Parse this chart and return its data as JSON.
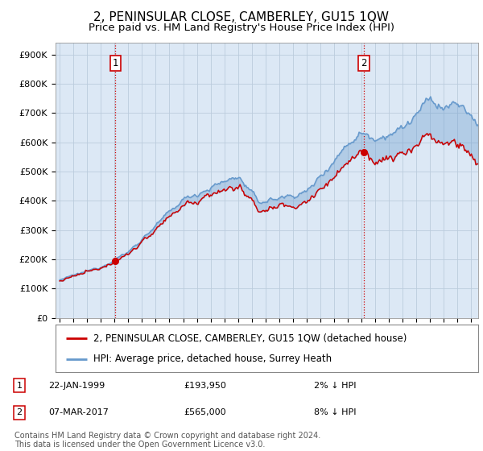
{
  "title": "2, PENINSULAR CLOSE, CAMBERLEY, GU15 1QW",
  "subtitle": "Price paid vs. HM Land Registry's House Price Index (HPI)",
  "ylim": [
    0,
    940000
  ],
  "yticks": [
    0,
    100000,
    200000,
    300000,
    400000,
    500000,
    600000,
    700000,
    800000,
    900000
  ],
  "sale1_year": 1999.06,
  "sale1_price": 193950,
  "sale2_year": 2017.18,
  "sale2_price": 565000,
  "sale1_date": "22-JAN-1999",
  "sale2_date": "07-MAR-2017",
  "sale1_hpi_diff": "2% ↓ HPI",
  "sale2_hpi_diff": "8% ↓ HPI",
  "legend1": "2, PENINSULAR CLOSE, CAMBERLEY, GU15 1QW (detached house)",
  "legend2": "HPI: Average price, detached house, Surrey Heath",
  "footer": "Contains HM Land Registry data © Crown copyright and database right 2024.\nThis data is licensed under the Open Government Licence v3.0.",
  "price_color": "#cc0000",
  "hpi_color": "#6699cc",
  "fill_color": "#dce8f5",
  "plot_bg": "#dce8f5",
  "vline_color": "#cc0000",
  "background_color": "#ffffff",
  "grid_color": "#bbccdd",
  "title_fontsize": 11,
  "subtitle_fontsize": 9.5,
  "tick_fontsize": 8,
  "legend_fontsize": 8.5,
  "footer_fontsize": 7
}
